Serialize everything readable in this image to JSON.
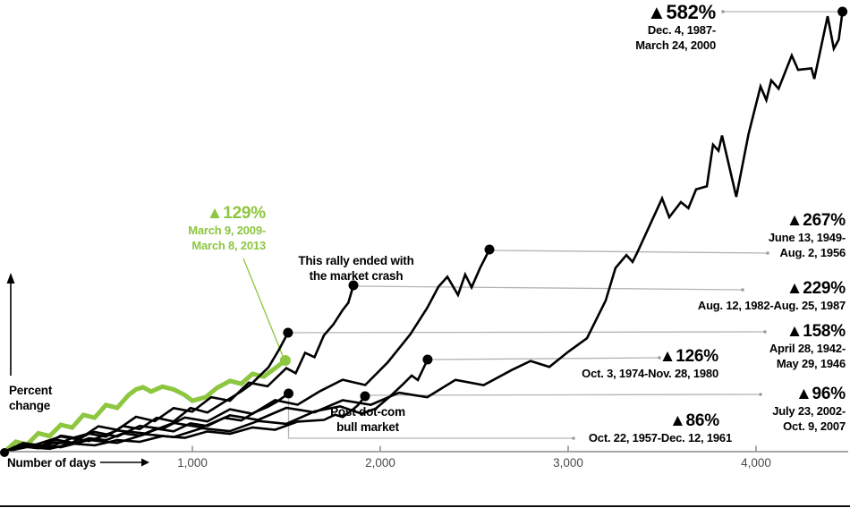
{
  "annotations": {
    "crash": [
      "This rally ended with",
      "the market crash"
    ],
    "dotcom": [
      "Post dot-com",
      "bull market"
    ]
  },
  "chart_data": {
    "type": "line",
    "xlabel": "Number of days",
    "ylabel": "Percent change",
    "x_tick_labels": [
      "1,000",
      "2,000",
      "3,000",
      "4,000"
    ],
    "x_tick_values": [
      1000,
      2000,
      3000,
      4000
    ],
    "x_range_days": [
      0,
      4480
    ],
    "y_range_pct": [
      0,
      600
    ],
    "grid": false,
    "series": [
      {
        "id": "s1987",
        "label": "▲582%",
        "gain_pct": 582,
        "duration_days": 4460,
        "dates": [
          "Dec. 4, 1987-",
          "March 24, 2000"
        ],
        "color": "#000000",
        "path": [
          [
            0,
            0
          ],
          [
            150,
            8
          ],
          [
            300,
            20
          ],
          [
            450,
            14
          ],
          [
            600,
            28
          ],
          [
            750,
            24
          ],
          [
            900,
            38
          ],
          [
            1050,
            32
          ],
          [
            1200,
            48
          ],
          [
            1350,
            42
          ],
          [
            1500,
            58
          ],
          [
            1650,
            52
          ],
          [
            1800,
            68
          ],
          [
            1950,
            62
          ],
          [
            2100,
            78
          ],
          [
            2250,
            72
          ],
          [
            2400,
            95
          ],
          [
            2550,
            88
          ],
          [
            2700,
            108
          ],
          [
            2800,
            120
          ],
          [
            2900,
            112
          ],
          [
            3000,
            132
          ],
          [
            3100,
            150
          ],
          [
            3200,
            200
          ],
          [
            3252,
            243
          ],
          [
            3310,
            260
          ],
          [
            3343,
            251
          ],
          [
            3367,
            263
          ],
          [
            3500,
            335
          ],
          [
            3538,
            310
          ],
          [
            3600,
            330
          ],
          [
            3640,
            322
          ],
          [
            3681,
            347
          ],
          [
            3738,
            351
          ],
          [
            3771,
            406
          ],
          [
            3800,
            398
          ],
          [
            3819,
            418
          ],
          [
            3895,
            337
          ],
          [
            3960,
            420
          ],
          [
            4024,
            483
          ],
          [
            4055,
            465
          ],
          [
            4081,
            491
          ],
          [
            4120,
            480
          ],
          [
            4190,
            524
          ],
          [
            4224,
            505
          ],
          [
            4295,
            507
          ],
          [
            4310,
            493
          ],
          [
            4381,
            576
          ],
          [
            4414,
            533
          ],
          [
            4440,
            545
          ],
          [
            4460,
            582
          ]
        ]
      },
      {
        "id": "s1949",
        "label": "▲267%",
        "gain_pct": 267,
        "duration_days": 2581,
        "dates": [
          "June 13, 1949-",
          "Aug. 2, 1956"
        ],
        "color": "#000000",
        "path": [
          [
            0,
            0
          ],
          [
            120,
            10
          ],
          [
            240,
            6
          ],
          [
            360,
            18
          ],
          [
            480,
            26
          ],
          [
            600,
            20
          ],
          [
            720,
            34
          ],
          [
            840,
            30
          ],
          [
            960,
            45
          ],
          [
            1080,
            40
          ],
          [
            1200,
            56
          ],
          [
            1320,
            50
          ],
          [
            1440,
            68
          ],
          [
            1560,
            62
          ],
          [
            1680,
            80
          ],
          [
            1800,
            95
          ],
          [
            1920,
            88
          ],
          [
            2040,
            118
          ],
          [
            2160,
            155
          ],
          [
            2250,
            190
          ],
          [
            2310,
            218
          ],
          [
            2357,
            231
          ],
          [
            2414,
            207
          ],
          [
            2452,
            234
          ],
          [
            2486,
            217
          ],
          [
            2530,
            242
          ],
          [
            2581,
            267
          ]
        ]
      },
      {
        "id": "s1982",
        "label": "▲229%",
        "gain_pct": 229,
        "duration_days": 1857,
        "dates": [
          "Aug. 12, 1982-Aug. 25, 1987"
        ],
        "color": "#000000",
        "path": [
          [
            0,
            0
          ],
          [
            100,
            12
          ],
          [
            200,
            8
          ],
          [
            300,
            22
          ],
          [
            400,
            18
          ],
          [
            500,
            35
          ],
          [
            600,
            30
          ],
          [
            700,
            48
          ],
          [
            800,
            42
          ],
          [
            900,
            60
          ],
          [
            1000,
            55
          ],
          [
            1100,
            75
          ],
          [
            1200,
            70
          ],
          [
            1300,
            95
          ],
          [
            1400,
            90
          ],
          [
            1500,
            115
          ],
          [
            1550,
            108
          ],
          [
            1600,
            136
          ],
          [
            1650,
            130
          ],
          [
            1700,
            160
          ],
          [
            1750,
            175
          ],
          [
            1800,
            195
          ],
          [
            1830,
            205
          ],
          [
            1857,
            229
          ]
        ]
      },
      {
        "id": "s1942",
        "label": "▲158%",
        "gain_pct": 158,
        "duration_days": 1509,
        "dates": [
          "April 28, 1942-",
          "May 29, 1946"
        ],
        "color": "#000000",
        "path": [
          [
            0,
            0
          ],
          [
            90,
            10
          ],
          [
            180,
            6
          ],
          [
            270,
            16
          ],
          [
            360,
            12
          ],
          [
            450,
            24
          ],
          [
            540,
            20
          ],
          [
            630,
            34
          ],
          [
            720,
            30
          ],
          [
            810,
            45
          ],
          [
            900,
            40
          ],
          [
            990,
            58
          ],
          [
            1080,
            52
          ],
          [
            1170,
            66
          ],
          [
            1260,
            80
          ],
          [
            1310,
            89
          ],
          [
            1405,
            112
          ],
          [
            1460,
            135
          ],
          [
            1509,
            158
          ]
        ]
      },
      {
        "id": "s1974",
        "label": "▲126%",
        "gain_pct": 126,
        "duration_days": 2252,
        "dates": [
          "Oct. 3, 1974-Nov. 28, 1980"
        ],
        "color": "#000000",
        "path": [
          [
            0,
            0
          ],
          [
            150,
            10
          ],
          [
            300,
            6
          ],
          [
            450,
            16
          ],
          [
            600,
            12
          ],
          [
            750,
            24
          ],
          [
            900,
            20
          ],
          [
            1050,
            32
          ],
          [
            1200,
            28
          ],
          [
            1350,
            42
          ],
          [
            1500,
            38
          ],
          [
            1650,
            55
          ],
          [
            1786,
            62
          ],
          [
            1900,
            52
          ],
          [
            1976,
            59
          ],
          [
            2050,
            75
          ],
          [
            2120,
            92
          ],
          [
            2167,
            104
          ],
          [
            2200,
            98
          ],
          [
            2252,
            126
          ]
        ]
      },
      {
        "id": "s2009",
        "label": "▲129%",
        "gain_pct": 129,
        "duration_days": 1495,
        "dates": [
          "March 9, 2009-",
          "March 8, 2013"
        ],
        "color": "#8dc63f",
        "path": [
          [
            0,
            0
          ],
          [
            60,
            14
          ],
          [
            120,
            10
          ],
          [
            180,
            26
          ],
          [
            240,
            22
          ],
          [
            300,
            38
          ],
          [
            360,
            34
          ],
          [
            420,
            52
          ],
          [
            480,
            48
          ],
          [
            540,
            66
          ],
          [
            600,
            62
          ],
          [
            660,
            80
          ],
          [
            700,
            88
          ],
          [
            738,
            91
          ],
          [
            780,
            85
          ],
          [
            840,
            92
          ],
          [
            900,
            88
          ],
          [
            960,
            80
          ],
          [
            1000,
            72
          ],
          [
            1071,
            77
          ],
          [
            1130,
            90
          ],
          [
            1200,
            100
          ],
          [
            1260,
            96
          ],
          [
            1320,
            110
          ],
          [
            1380,
            106
          ],
          [
            1440,
            118
          ],
          [
            1495,
            129
          ]
        ]
      },
      {
        "id": "s2002",
        "label": "▲96%",
        "gain_pct": 96,
        "duration_days": 1919,
        "dates": [
          "July 23, 2002-",
          "Oct. 9, 2007"
        ],
        "color": "#000000",
        "path": [
          [
            0,
            0
          ],
          [
            120,
            8
          ],
          [
            240,
            5
          ],
          [
            360,
            14
          ],
          [
            480,
            11
          ],
          [
            600,
            20
          ],
          [
            720,
            17
          ],
          [
            840,
            27
          ],
          [
            960,
            24
          ],
          [
            1080,
            35
          ],
          [
            1200,
            31
          ],
          [
            1320,
            42
          ],
          [
            1440,
            38
          ],
          [
            1560,
            52
          ],
          [
            1700,
            55
          ],
          [
            1760,
            64
          ],
          [
            1800,
            60
          ],
          [
            1850,
            72
          ],
          [
            1880,
            80
          ],
          [
            1919,
            96
          ]
        ]
      },
      {
        "id": "s1957",
        "label": "▲86%",
        "gain_pct": 86,
        "duration_days": 1512,
        "dates": [
          "Oct. 22, 1957-Dec. 12, 1961"
        ],
        "color": "#000000",
        "path": [
          [
            0,
            0
          ],
          [
            90,
            8
          ],
          [
            180,
            5
          ],
          [
            270,
            14
          ],
          [
            360,
            11
          ],
          [
            450,
            20
          ],
          [
            540,
            17
          ],
          [
            630,
            27
          ],
          [
            720,
            24
          ],
          [
            810,
            34
          ],
          [
            900,
            30
          ],
          [
            990,
            42
          ],
          [
            1080,
            38
          ],
          [
            1170,
            50
          ],
          [
            1260,
            46
          ],
          [
            1330,
            58
          ],
          [
            1400,
            66
          ],
          [
            1450,
            74
          ],
          [
            1512,
            86
          ]
        ]
      }
    ]
  }
}
